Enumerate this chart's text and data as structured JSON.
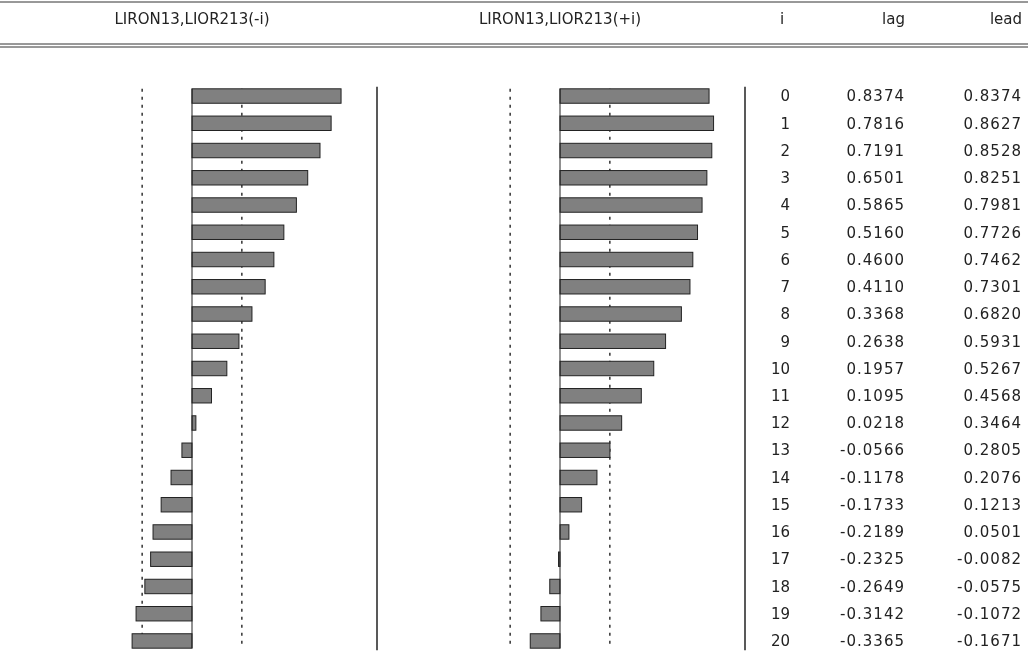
{
  "chart_data": [
    {
      "type": "bar",
      "orientation": "horizontal",
      "title": "LIRON13,LIOR213(-i)",
      "ylabel": "i",
      "categories": [
        "0",
        "1",
        "2",
        "3",
        "4",
        "5",
        "6",
        "7",
        "8",
        "9",
        "10",
        "11",
        "12",
        "13",
        "14",
        "15",
        "16",
        "17",
        "18",
        "19",
        "20"
      ],
      "series": [
        {
          "name": "lag",
          "color": "#808080",
          "values": [
            0.8374,
            0.7816,
            0.7191,
            0.6501,
            0.5865,
            0.516,
            0.46,
            0.411,
            0.3368,
            0.2638,
            0.1957,
            0.1095,
            0.0218,
            -0.0566,
            -0.1178,
            -0.1733,
            -0.2189,
            -0.2325,
            -0.2649,
            -0.3142,
            -0.3365
          ],
          "value_labels": [
            "0.8374",
            "0.7816",
            "0.7191",
            "0.6501",
            "0.5865",
            "0.5160",
            "0.4600",
            "0.4110",
            "0.3368",
            "0.2638",
            "0.1957",
            "0.1095",
            "0.0218",
            "-0.0566",
            "-0.1178",
            "-0.1733",
            "-0.2189",
            "-0.2325",
            "-0.2649",
            "-0.3142",
            "-0.3365"
          ]
        }
      ],
      "tick_labels": "y",
      "ref_lines": [
        {
          "axis": "x",
          "value": -0.28,
          "line_style": "dashed"
        },
        {
          "axis": "x",
          "value": 0.28,
          "line_style": "dashed"
        }
      ]
    },
    {
      "type": "bar",
      "orientation": "horizontal",
      "title": "LIRON13,LIOR213(+i)",
      "categories": [
        "0",
        "1",
        "2",
        "3",
        "4",
        "5",
        "6",
        "7",
        "8",
        "9",
        "10",
        "11",
        "12",
        "13",
        "14",
        "15",
        "16",
        "17",
        "18",
        "19",
        "20"
      ],
      "series": [
        {
          "name": "lead",
          "color": "#808080",
          "values": [
            0.8374,
            0.8627,
            0.8528,
            0.8251,
            0.7981,
            0.7726,
            0.7462,
            0.7301,
            0.682,
            0.5931,
            0.5267,
            0.4568,
            0.3464,
            0.2805,
            0.2076,
            0.1213,
            0.0501,
            -0.0082,
            -0.0575,
            -0.1072,
            -0.1671
          ],
          "value_labels": [
            "0.8374",
            "0.8627",
            "0.8528",
            "0.8251",
            "0.7981",
            "0.7726",
            "0.7462",
            "0.7301",
            "0.6820",
            "0.5931",
            "0.5267",
            "0.4568",
            "0.3464",
            "0.2805",
            "0.2076",
            "0.1213",
            "0.0501",
            "-0.0082",
            "-0.0575",
            "-0.1072",
            "-0.1671"
          ]
        }
      ],
      "tick_labels": false,
      "ref_lines": [
        {
          "axis": "x",
          "value": -0.28,
          "line_style": "dashed"
        },
        {
          "axis": "x",
          "value": 0.28,
          "line_style": "dashed"
        }
      ]
    }
  ]
}
